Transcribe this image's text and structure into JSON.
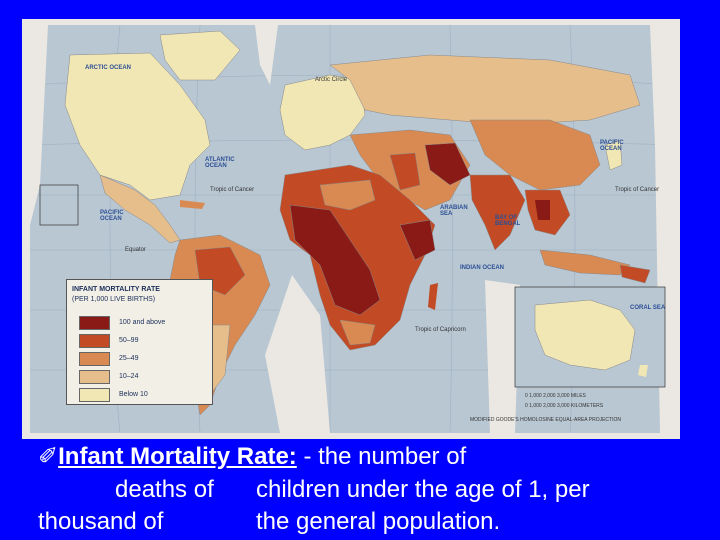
{
  "map": {
    "legend": {
      "title": "INFANT MORTALITY RATE",
      "subtitle": "(PER 1,000 LIVE BIRTHS)",
      "classes": [
        {
          "label": "100 and above",
          "color": "#8a1a16"
        },
        {
          "label": "50–99",
          "color": "#c24a24"
        },
        {
          "label": "25–49",
          "color": "#d98a52"
        },
        {
          "label": "10–24",
          "color": "#e6be8c"
        },
        {
          "label": "Below 10",
          "color": "#f1e7b5"
        }
      ]
    },
    "ocean_labels": {
      "arctic": "ARCTIC OCEAN",
      "atlantic": "ATLANTIC OCEAN",
      "pacific_west": "PACIFIC OCEAN",
      "pacific_east": "PACIFIC OCEAN",
      "indian": "INDIAN OCEAN",
      "arabian_sea": "ARABIAN SEA",
      "bay_of_bengal": "BAY OF BENGAL",
      "coral_sea": "CORAL SEA"
    },
    "line_labels": {
      "arctic_circle": "Arctic Circle",
      "tropic_cancer_w": "Tropic of Cancer",
      "tropic_cancer_e": "Tropic of Cancer",
      "equator": "Equator",
      "tropic_capricorn": "Tropic of Capricorn"
    },
    "scale": {
      "miles": "0 1,000 2,000 3,000 MILES",
      "km": "0 1,000 2,000 3,000 KILOMETERS",
      "projection": "MODIFIED GOODE'S HOMOLOSINE EQUAL-AREA PROJECTION"
    },
    "colors": {
      "ocean": "#b9c7d3",
      "frame": "#ebe8e3",
      "background": "#0000ff"
    }
  },
  "caption": {
    "bullet": "✐",
    "term": "Infant Mortality Rate:",
    "line1_rest": " - the number of",
    "line2_a": "deaths of",
    "line2_b": "children under the age of 1, per",
    "line3_a": "thousand of",
    "line3_b": "the general population."
  }
}
